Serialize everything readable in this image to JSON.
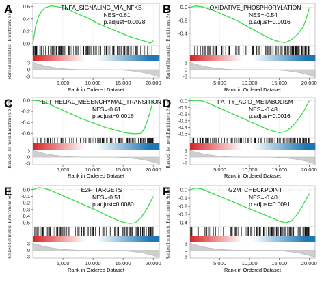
{
  "chart_data": [
    {
      "type": "line",
      "panel_label": "A",
      "title": "TNFA_SIGNALING_VIA_NFKB",
      "nes_text": "NES=0.61",
      "padj_text": "p.adjust=0.0028",
      "ylabel_top": "Enrichment Score",
      "ylabel_bottom": "Ranked list metric",
      "xlabel": "Rank in Ordered Dataset",
      "x_ticks": [
        "5,000",
        "10,000",
        "15,000",
        "20,000"
      ],
      "x_tick_values": [
        5000,
        10000,
        15000,
        20000
      ],
      "y_ticks": [
        "0.6",
        "0.4",
        "0.2",
        "0.0"
      ],
      "y_tick_values": [
        0.6,
        0.4,
        0.2,
        0.0
      ],
      "ylim": [
        -0.02,
        0.65
      ],
      "metric_ticks": [
        "3",
        "0",
        "-3"
      ],
      "x": [
        0,
        500,
        1000,
        1500,
        2000,
        3000,
        4000,
        5000,
        6000,
        7000,
        8000,
        9000,
        10000,
        11000,
        12000,
        13000,
        14000,
        15000,
        16000,
        17000,
        18000,
        19000,
        19500,
        20000
      ],
      "y": [
        0.0,
        0.3,
        0.45,
        0.53,
        0.58,
        0.61,
        0.6,
        0.58,
        0.55,
        0.5,
        0.46,
        0.42,
        0.37,
        0.32,
        0.28,
        0.24,
        0.2,
        0.16,
        0.12,
        0.09,
        0.06,
        0.03,
        0.01,
        0.05
      ],
      "enrichment": "positive"
    },
    {
      "type": "line",
      "panel_label": "B",
      "title": "OXIDATIVE_PHOSPHORYLATION",
      "nes_text": "NES=-0.54",
      "padj_text": "p.adjust=0.0016",
      "ylabel_top": "Enrichment Score",
      "ylabel_bottom": "Ranked list metric",
      "xlabel": "Rank in Ordered Dataset",
      "x_ticks": [
        "5,000",
        "10,000",
        "15,000",
        "20,000"
      ],
      "x_tick_values": [
        5000,
        10000,
        15000,
        20000
      ],
      "y_ticks": [
        "0.0",
        "-0.2",
        "-0.4"
      ],
      "y_tick_values": [
        0.0,
        -0.2,
        -0.4
      ],
      "ylim": [
        -0.58,
        0.06
      ],
      "metric_ticks": [
        "3",
        "0",
        "-3"
      ],
      "x": [
        0,
        1000,
        2000,
        3000,
        4000,
        5000,
        6000,
        7000,
        8000,
        9000,
        10000,
        11000,
        12000,
        13000,
        14000,
        15000,
        16000,
        17000,
        18000,
        19000,
        19500,
        20000
      ],
      "y": [
        0.0,
        0.02,
        0.01,
        -0.02,
        -0.05,
        -0.09,
        -0.13,
        -0.17,
        -0.21,
        -0.26,
        -0.31,
        -0.36,
        -0.41,
        -0.46,
        -0.5,
        -0.53,
        -0.54,
        -0.5,
        -0.42,
        -0.3,
        -0.18,
        -0.02
      ],
      "enrichment": "negative"
    },
    {
      "type": "line",
      "panel_label": "C",
      "title": "EPITHELIAL_MESENCHYMAL_TRANSITION",
      "nes_text": "NES=-0.61",
      "padj_text": "p.adjust=0.0016",
      "ylabel_top": "Enrichment Score",
      "ylabel_bottom": "Ranked list metric",
      "xlabel": "Rank in Ordered Dataset",
      "x_ticks": [
        "5,000",
        "10,000",
        "15,000",
        "20,000"
      ],
      "x_tick_values": [
        5000,
        10000,
        15000,
        20000
      ],
      "y_ticks": [
        "0.0",
        "-0.2",
        "-0.4",
        "-0.6"
      ],
      "y_tick_values": [
        0.0,
        -0.2,
        -0.4,
        -0.6
      ],
      "ylim": [
        -0.66,
        0.05
      ],
      "metric_ticks": [
        "3",
        "0",
        "-3"
      ],
      "x": [
        0,
        1000,
        2000,
        3000,
        4000,
        5000,
        6000,
        7000,
        8000,
        9000,
        10000,
        11000,
        12000,
        13000,
        14000,
        15000,
        16000,
        17000,
        18000,
        18500,
        19000,
        19500,
        20000
      ],
      "y": [
        0.0,
        -0.01,
        -0.04,
        -0.08,
        -0.13,
        -0.18,
        -0.23,
        -0.28,
        -0.33,
        -0.37,
        -0.41,
        -0.45,
        -0.49,
        -0.52,
        -0.55,
        -0.58,
        -0.6,
        -0.61,
        -0.6,
        -0.52,
        -0.38,
        -0.2,
        0.0
      ],
      "enrichment": "negative"
    },
    {
      "type": "line",
      "panel_label": "D",
      "title": "FATTY_ACID_METABOLISM",
      "nes_text": "NES=-0.48",
      "padj_text": "p.adjust=0.0016",
      "ylabel_top": "Enrichment Score",
      "ylabel_bottom": "Ranked list metric",
      "xlabel": "Rank in Ordered Dataset",
      "x_ticks": [
        "5,000",
        "10,000",
        "15,000",
        "20,000"
      ],
      "x_tick_values": [
        5000,
        10000,
        15000,
        20000
      ],
      "y_ticks": [
        "0.0",
        "-0.1",
        "-0.2",
        "-0.3",
        "-0.4",
        "-0.5"
      ],
      "y_tick_values": [
        0.0,
        -0.1,
        -0.2,
        -0.3,
        -0.4,
        -0.5
      ],
      "ylim": [
        -0.54,
        0.05
      ],
      "metric_ticks": [
        "3",
        "0",
        "-3"
      ],
      "x": [
        0,
        1000,
        2000,
        3000,
        4000,
        5000,
        6000,
        7000,
        8000,
        9000,
        10000,
        11000,
        12000,
        13000,
        14000,
        15000,
        16000,
        17000,
        18000,
        19000,
        20000
      ],
      "y": [
        0.0,
        0.01,
        0.0,
        -0.03,
        -0.07,
        -0.11,
        -0.15,
        -0.19,
        -0.23,
        -0.27,
        -0.31,
        -0.35,
        -0.39,
        -0.43,
        -0.46,
        -0.48,
        -0.47,
        -0.4,
        -0.3,
        -0.17,
        0.0
      ],
      "enrichment": "negative"
    },
    {
      "type": "line",
      "panel_label": "E",
      "title": "E2F_TARGETS",
      "nes_text": "NES=-0.51",
      "padj_text": "p.adjust=0.0080",
      "ylabel_top": "Enrichment Score",
      "ylabel_bottom": "Ranked list metric",
      "xlabel": "Rank in Ordered Dataset",
      "x_ticks": [
        "5,000",
        "10,000",
        "15,000",
        "20,000"
      ],
      "x_tick_values": [
        5000,
        10000,
        15000,
        20000
      ],
      "y_ticks": [
        "0.0",
        "-0.1",
        "-0.2",
        "-0.3",
        "-0.4",
        "-0.5"
      ],
      "y_tick_values": [
        0.0,
        -0.1,
        -0.2,
        -0.3,
        -0.4,
        -0.5
      ],
      "ylim": [
        -0.55,
        0.06
      ],
      "metric_ticks": [
        "3",
        "0",
        "-3"
      ],
      "x": [
        0,
        1000,
        2000,
        3000,
        4000,
        5000,
        6000,
        7000,
        8000,
        9000,
        10000,
        11000,
        12000,
        13000,
        14000,
        15000,
        16000,
        17000,
        18000,
        19000,
        20000
      ],
      "y": [
        0.0,
        0.03,
        0.02,
        -0.01,
        -0.05,
        -0.09,
        -0.13,
        -0.17,
        -0.21,
        -0.25,
        -0.29,
        -0.33,
        -0.38,
        -0.42,
        -0.46,
        -0.49,
        -0.51,
        -0.5,
        -0.42,
        -0.28,
        -0.1
      ],
      "enrichment": "negative"
    },
    {
      "type": "line",
      "panel_label": "F",
      "title": "G2M_CHECKPOINT",
      "nes_text": "NES=-0.40",
      "padj_text": "p.adjust=0.0091",
      "ylabel_top": "Enrichment Score",
      "ylabel_bottom": "Ranked list metric",
      "xlabel": "Rank in Ordered Dataset",
      "x_ticks": [
        "5,000",
        "10,000",
        "15,000",
        "20,000"
      ],
      "x_tick_values": [
        5000,
        10000,
        15000,
        20000
      ],
      "y_ticks": [
        "0.0",
        "-0.1",
        "-0.2",
        "-0.3",
        "-0.4"
      ],
      "y_tick_values": [
        0.0,
        -0.1,
        -0.2,
        -0.3,
        -0.4
      ],
      "ylim": [
        -0.44,
        0.05
      ],
      "metric_ticks": [
        "3",
        "0",
        "-3"
      ],
      "x": [
        0,
        1000,
        2000,
        3000,
        4000,
        5000,
        6000,
        7000,
        8000,
        9000,
        10000,
        11000,
        12000,
        13000,
        14000,
        15000,
        16000,
        17000,
        18000,
        19000,
        20000
      ],
      "y": [
        0.0,
        0.02,
        0.01,
        -0.02,
        -0.05,
        -0.08,
        -0.11,
        -0.14,
        -0.17,
        -0.2,
        -0.23,
        -0.26,
        -0.29,
        -0.32,
        -0.35,
        -0.38,
        -0.4,
        -0.38,
        -0.3,
        -0.18,
        -0.05
      ],
      "enrichment": "negative"
    }
  ],
  "colors": {
    "curve": "#33dd44",
    "zero_line": "#d44",
    "tick_mark": "#111111",
    "metric_fill": "#cfcfcf",
    "red": "#d62728",
    "blue": "#1f77b4",
    "white": "#ffffff"
  },
  "x_max": 21000
}
